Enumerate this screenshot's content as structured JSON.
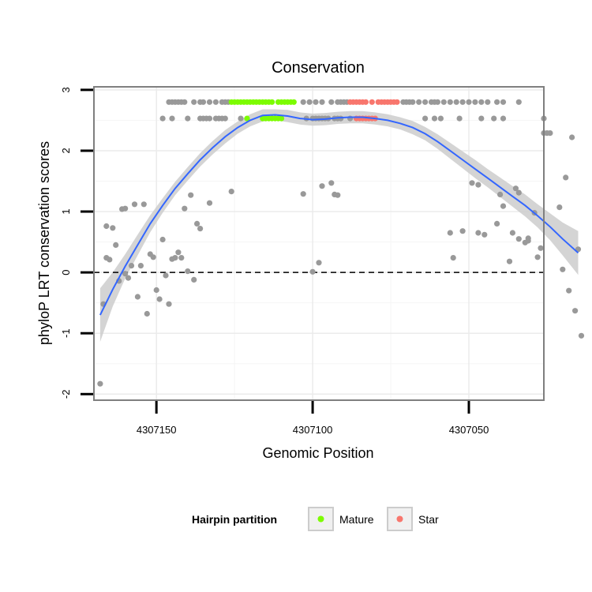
{
  "chart_data": {
    "type": "scatter",
    "title": "Conservation",
    "xlabel": "Genomic Position",
    "ylabel": "phyloP LRT conservation scores",
    "x_reversed": true,
    "xlim": [
      4307170,
      4307026
    ],
    "ylim": [
      -2.1,
      3.05
    ],
    "x_ticks": [
      4307150,
      4307100,
      4307050
    ],
    "x_tick_labels": [
      "4307150",
      "4307100",
      "4307050"
    ],
    "y_ticks": [
      -2,
      -1,
      0,
      1,
      2,
      3
    ],
    "y_tick_labels": [
      "-2",
      "-1",
      "0",
      "1",
      "2",
      "3"
    ],
    "hline": 0,
    "grid": true,
    "colors": {
      "default": "#999999",
      "Mature": "#7cfc00",
      "Star": "#f8766d",
      "smooth_line": "#3366ff",
      "ribbon": "#cccccc",
      "panel_border": "#7f7f7f",
      "grid_major": "#ebebeb",
      "grid_minor": "#f5f5f5"
    },
    "legend": {
      "title": "Hairpin partition",
      "position": "bottom",
      "entries": [
        {
          "label": "Mature",
          "color": "#7cfc00"
        },
        {
          "label": "Star",
          "color": "#f8766d"
        }
      ]
    },
    "series": [
      {
        "name": "None",
        "color": "#999999",
        "points": [
          [
            4307168,
            -1.83
          ],
          [
            4307167,
            -0.52
          ],
          [
            4307166,
            0.24
          ],
          [
            4307166,
            0.76
          ],
          [
            4307165,
            0.21
          ],
          [
            4307164,
            0.73
          ],
          [
            4307163,
            0.45
          ],
          [
            4307162,
            -0.14
          ],
          [
            4307161,
            1.04
          ],
          [
            4307160,
            1.05
          ],
          [
            4307160,
            -0.02
          ],
          [
            4307159,
            -0.09
          ],
          [
            4307158,
            0.11
          ],
          [
            4307157,
            1.12
          ],
          [
            4307156,
            -0.4
          ],
          [
            4307155,
            0.11
          ],
          [
            4307154,
            1.12
          ],
          [
            4307153,
            -0.68
          ],
          [
            4307152,
            0.3
          ],
          [
            4307151,
            0.25
          ],
          [
            4307150,
            -0.29
          ],
          [
            4307149,
            -0.44
          ],
          [
            4307148,
            0.54
          ],
          [
            4307147,
            -0.05
          ],
          [
            4307146,
            -0.52
          ],
          [
            4307145,
            0.22
          ],
          [
            4307144,
            0.24
          ],
          [
            4307143,
            0.33
          ],
          [
            4307142,
            0.24
          ],
          [
            4307141,
            1.05
          ],
          [
            4307140,
            0.02
          ],
          [
            4307139,
            1.27
          ],
          [
            4307138,
            -0.12
          ],
          [
            4307137,
            0.8
          ],
          [
            4307136,
            0.72
          ],
          [
            4307133,
            1.14
          ],
          [
            4307126,
            1.33
          ],
          [
            4307103,
            1.29
          ],
          [
            4307100,
            0.01
          ],
          [
            4307098,
            0.16
          ],
          [
            4307097,
            1.42
          ],
          [
            4307094,
            1.47
          ],
          [
            4307093,
            1.28
          ],
          [
            4307092,
            1.27
          ],
          [
            4307056,
            0.65
          ],
          [
            4307055,
            0.24
          ],
          [
            4307052,
            0.68
          ],
          [
            4307049,
            1.47
          ],
          [
            4307047,
            1.44
          ],
          [
            4307047,
            0.65
          ],
          [
            4307045,
            0.62
          ],
          [
            4307041,
            0.8
          ],
          [
            4307040,
            1.28
          ],
          [
            4307039,
            1.09
          ],
          [
            4307037,
            0.18
          ],
          [
            4307036,
            0.65
          ],
          [
            4307035,
            1.38
          ],
          [
            4307034,
            1.31
          ],
          [
            4307034,
            0.55
          ],
          [
            4307032,
            0.49
          ],
          [
            4307031,
            0.56
          ],
          [
            4307031,
            0.52
          ],
          [
            4307029,
            0.98
          ],
          [
            4307028,
            0.25
          ],
          [
            4307027,
            0.4
          ],
          [
            4307026,
            2.29
          ],
          [
            4307026,
            2.53
          ],
          [
            4307025,
            2.29
          ],
          [
            4307024,
            2.29
          ],
          [
            4307021,
            1.07
          ],
          [
            4307020,
            0.05
          ],
          [
            4307019,
            1.56
          ],
          [
            4307018,
            -0.3
          ],
          [
            4307017,
            2.22
          ],
          [
            4307016,
            -0.63
          ],
          [
            4307015,
            0.38
          ],
          [
            4307014,
            -1.04
          ],
          [
            4307146,
            2.8
          ],
          [
            4307145,
            2.8
          ],
          [
            4307144,
            2.8
          ],
          [
            4307143,
            2.8
          ],
          [
            4307142,
            2.8
          ],
          [
            4307141,
            2.8
          ],
          [
            4307138,
            2.8
          ],
          [
            4307136,
            2.8
          ],
          [
            4307135,
            2.8
          ],
          [
            4307133,
            2.8
          ],
          [
            4307131,
            2.8
          ],
          [
            4307129,
            2.8
          ],
          [
            4307128,
            2.8
          ],
          [
            4307127,
            2.8
          ],
          [
            4307103,
            2.8
          ],
          [
            4307101,
            2.8
          ],
          [
            4307099,
            2.8
          ],
          [
            4307097,
            2.8
          ],
          [
            4307094,
            2.8
          ],
          [
            4307092,
            2.8
          ],
          [
            4307091,
            2.8
          ],
          [
            4307090,
            2.8
          ],
          [
            4307089,
            2.8
          ],
          [
            4307071,
            2.8
          ],
          [
            4307070,
            2.8
          ],
          [
            4307069,
            2.8
          ],
          [
            4307068,
            2.8
          ],
          [
            4307066,
            2.8
          ],
          [
            4307064,
            2.8
          ],
          [
            4307062,
            2.8
          ],
          [
            4307061,
            2.8
          ],
          [
            4307060,
            2.8
          ],
          [
            4307058,
            2.8
          ],
          [
            4307056,
            2.8
          ],
          [
            4307054,
            2.8
          ],
          [
            4307052,
            2.8
          ],
          [
            4307050,
            2.8
          ],
          [
            4307048,
            2.8
          ],
          [
            4307046,
            2.8
          ],
          [
            4307044,
            2.8
          ],
          [
            4307041,
            2.8
          ],
          [
            4307039,
            2.8
          ],
          [
            4307034,
            2.8
          ],
          [
            4307148,
            2.53
          ],
          [
            4307145,
            2.53
          ],
          [
            4307140,
            2.53
          ],
          [
            4307136,
            2.53
          ],
          [
            4307135,
            2.53
          ],
          [
            4307134,
            2.53
          ],
          [
            4307133,
            2.53
          ],
          [
            4307131,
            2.53
          ],
          [
            4307130,
            2.53
          ],
          [
            4307129,
            2.53
          ],
          [
            4307128,
            2.53
          ],
          [
            4307123,
            2.53
          ],
          [
            4307102,
            2.53
          ],
          [
            4307100,
            2.53
          ],
          [
            4307099,
            2.53
          ],
          [
            4307098,
            2.53
          ],
          [
            4307097,
            2.53
          ],
          [
            4307096,
            2.53
          ],
          [
            4307095,
            2.53
          ],
          [
            4307093,
            2.53
          ],
          [
            4307092,
            2.53
          ],
          [
            4307091,
            2.53
          ],
          [
            4307088,
            2.53
          ],
          [
            4307064,
            2.53
          ],
          [
            4307061,
            2.53
          ],
          [
            4307059,
            2.53
          ],
          [
            4307053,
            2.53
          ],
          [
            4307046,
            2.53
          ],
          [
            4307042,
            2.53
          ],
          [
            4307039,
            2.53
          ]
        ]
      },
      {
        "name": "Mature",
        "color": "#7cfc00",
        "points": [
          [
            4307126,
            2.8
          ],
          [
            4307125,
            2.8
          ],
          [
            4307124,
            2.8
          ],
          [
            4307123,
            2.8
          ],
          [
            4307122,
            2.8
          ],
          [
            4307121,
            2.8
          ],
          [
            4307120,
            2.8
          ],
          [
            4307119,
            2.8
          ],
          [
            4307118,
            2.8
          ],
          [
            4307117,
            2.8
          ],
          [
            4307116,
            2.8
          ],
          [
            4307115,
            2.8
          ],
          [
            4307114,
            2.8
          ],
          [
            4307113,
            2.8
          ],
          [
            4307111,
            2.8
          ],
          [
            4307110,
            2.8
          ],
          [
            4307109,
            2.8
          ],
          [
            4307108,
            2.8
          ],
          [
            4307107,
            2.8
          ],
          [
            4307106,
            2.8
          ],
          [
            4307121,
            2.53
          ],
          [
            4307116,
            2.53
          ],
          [
            4307115,
            2.53
          ],
          [
            4307114,
            2.53
          ],
          [
            4307113,
            2.53
          ],
          [
            4307112,
            2.53
          ],
          [
            4307111,
            2.53
          ],
          [
            4307110,
            2.53
          ]
        ]
      },
      {
        "name": "Star",
        "color": "#f8766d",
        "points": [
          [
            4307088,
            2.8
          ],
          [
            4307087,
            2.8
          ],
          [
            4307086,
            2.8
          ],
          [
            4307085,
            2.8
          ],
          [
            4307084,
            2.8
          ],
          [
            4307083,
            2.8
          ],
          [
            4307081,
            2.8
          ],
          [
            4307079,
            2.8
          ],
          [
            4307078,
            2.8
          ],
          [
            4307077,
            2.8
          ],
          [
            4307076,
            2.8
          ],
          [
            4307075,
            2.8
          ],
          [
            4307074,
            2.8
          ],
          [
            4307073,
            2.8
          ],
          [
            4307086,
            2.53
          ],
          [
            4307085,
            2.53
          ],
          [
            4307084,
            2.53
          ],
          [
            4307083,
            2.53
          ],
          [
            4307082,
            2.53
          ],
          [
            4307081,
            2.53
          ],
          [
            4307080,
            2.53
          ]
        ]
      }
    ],
    "smooth": {
      "method": "loess",
      "color": "#3366ff",
      "x": [
        4307168,
        4307164,
        4307160,
        4307156,
        4307152,
        4307148,
        4307144,
        4307140,
        4307136,
        4307132,
        4307128,
        4307124,
        4307120,
        4307116,
        4307112,
        4307108,
        4307104,
        4307100,
        4307096,
        4307092,
        4307088,
        4307084,
        4307080,
        4307076,
        4307072,
        4307068,
        4307064,
        4307060,
        4307056,
        4307052,
        4307048,
        4307044,
        4307040,
        4307036,
        4307032,
        4307028,
        4307024,
        4307020,
        4307015
      ],
      "y": [
        -0.7,
        -0.28,
        0.1,
        0.45,
        0.8,
        1.1,
        1.38,
        1.62,
        1.85,
        2.05,
        2.23,
        2.38,
        2.5,
        2.58,
        2.59,
        2.57,
        2.53,
        2.51,
        2.52,
        2.54,
        2.55,
        2.55,
        2.53,
        2.5,
        2.45,
        2.38,
        2.28,
        2.15,
        2.0,
        1.85,
        1.7,
        1.55,
        1.4,
        1.25,
        1.1,
        0.93,
        0.75,
        0.55,
        0.32
      ],
      "se_lower": [
        -1.14,
        -0.56,
        -0.1,
        0.28,
        0.66,
        0.98,
        1.27,
        1.51,
        1.74,
        1.94,
        2.12,
        2.28,
        2.4,
        2.48,
        2.5,
        2.47,
        2.43,
        2.41,
        2.42,
        2.44,
        2.45,
        2.45,
        2.43,
        2.4,
        2.35,
        2.27,
        2.17,
        2.03,
        1.87,
        1.71,
        1.55,
        1.4,
        1.24,
        1.08,
        0.92,
        0.74,
        0.53,
        0.28,
        -0.04
      ],
      "se_upper": [
        -0.26,
        0.0,
        0.3,
        0.62,
        0.94,
        1.22,
        1.49,
        1.73,
        1.96,
        2.16,
        2.34,
        2.48,
        2.6,
        2.68,
        2.68,
        2.67,
        2.63,
        2.61,
        2.62,
        2.64,
        2.65,
        2.65,
        2.63,
        2.6,
        2.55,
        2.49,
        2.39,
        2.27,
        2.13,
        1.99,
        1.85,
        1.7,
        1.56,
        1.42,
        1.28,
        1.12,
        0.97,
        0.82,
        0.68
      ]
    }
  }
}
